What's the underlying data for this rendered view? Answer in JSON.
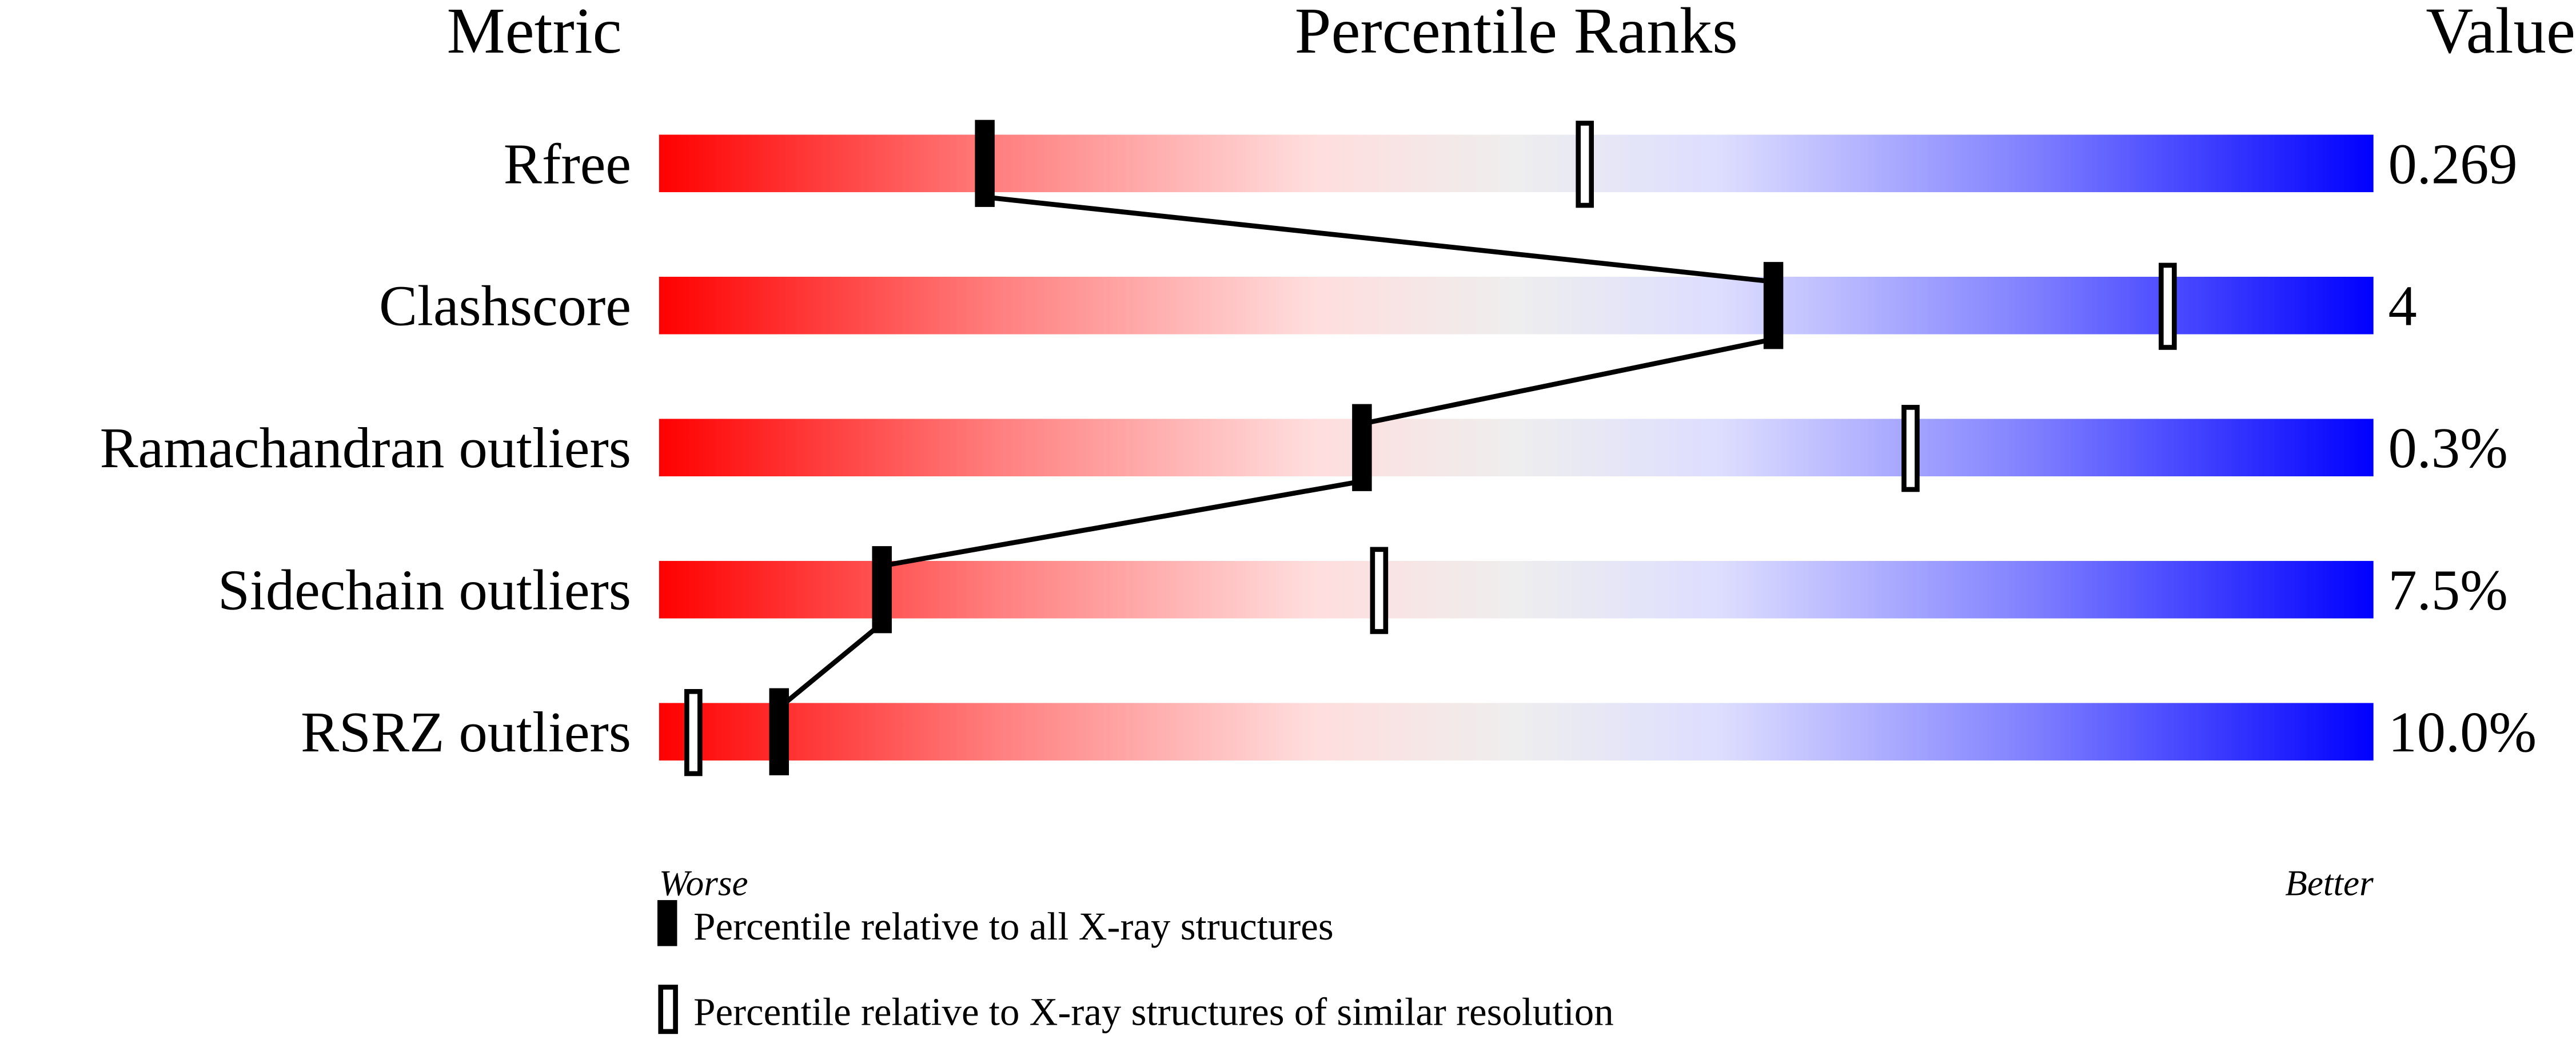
{
  "chart_data": {
    "type": "percentile-bar",
    "headers": {
      "metric": "Metric",
      "ranks": "Percentile Ranks",
      "value": "Value"
    },
    "xlim": [
      0,
      100
    ],
    "axis_labels": {
      "left": "Worse",
      "right": "Better"
    },
    "gradient_colors": [
      "#ff0000",
      "#ffdddd",
      "#eeeeee",
      "#ddddff",
      "#0000ff"
    ],
    "rows": [
      {
        "metric": "Rfree",
        "value": "0.269",
        "percentile_all": 19,
        "percentile_similar": 54
      },
      {
        "metric": "Clashscore",
        "value": "4",
        "percentile_all": 65,
        "percentile_similar": 88
      },
      {
        "metric": "Ramachandran outliers",
        "value": "0.3%",
        "percentile_all": 41,
        "percentile_similar": 73
      },
      {
        "metric": "Sidechain outliers",
        "value": "7.5%",
        "percentile_all": 13,
        "percentile_similar": 42
      },
      {
        "metric": "RSRZ outliers",
        "value": "10.0%",
        "percentile_all": 7,
        "percentile_similar": 2
      }
    ],
    "legend": [
      {
        "marker": "filled",
        "label": "Percentile relative to all X-ray structures"
      },
      {
        "marker": "open",
        "label": "Percentile relative to X-ray structures of similar resolution"
      }
    ]
  }
}
